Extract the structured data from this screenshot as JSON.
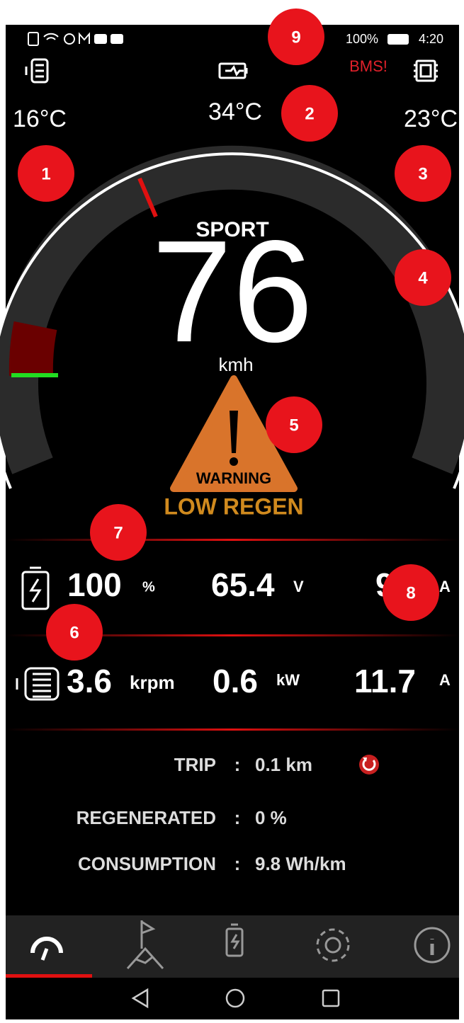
{
  "status_bar": {
    "battery": "100%",
    "time": "4:20"
  },
  "alert": "BMS!",
  "temperatures": {
    "motor": "16°C",
    "battery": "34°C",
    "controller": "23°C"
  },
  "markers": [
    "1",
    "2",
    "3",
    "4",
    "5",
    "6",
    "7",
    "8",
    "9"
  ],
  "speedometer": {
    "mode": "SPORT",
    "speed": "76",
    "unit": "kmh"
  },
  "warning": {
    "title": "WARNING",
    "message": "LOW REGEN"
  },
  "battery_row": [
    {
      "value": "100",
      "unit": "%"
    },
    {
      "value": "65.4",
      "unit": "V"
    },
    {
      "value": "9.4",
      "unit": "A"
    }
  ],
  "motor_row": [
    {
      "value": "3.6",
      "unit": "krpm"
    },
    {
      "value": "0.6",
      "unit": "kW"
    },
    {
      "value": "11.7",
      "unit": "A"
    }
  ],
  "stats": [
    {
      "label": "TRIP",
      "sep": ":",
      "value": "0.1 km"
    },
    {
      "label": "REGENERATED",
      "sep": ":",
      "value": "0 %"
    },
    {
      "label": "CONSUMPTION",
      "sep": ":",
      "value": "9.8 Wh/km"
    }
  ]
}
